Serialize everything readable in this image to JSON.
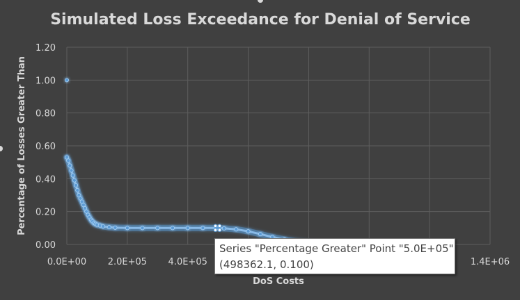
{
  "chart_data": {
    "type": "scatter",
    "title": "Simulated Loss Exceedance for Denial of Service",
    "xlabel": "DoS Costs",
    "ylabel": "Percentage of Losses Greater Than",
    "xlim": [
      0,
      1400000
    ],
    "ylim": [
      0,
      1.2
    ],
    "x_ticks": [
      0,
      200000,
      400000,
      600000,
      800000,
      1000000,
      1200000,
      1400000
    ],
    "x_tick_labels": [
      "0.0E+00",
      "2.0E+05",
      "4.0E+05",
      "6.0E+05",
      "8.0E+05",
      "1.0E+06",
      "1.2E+06",
      "1.4E+06"
    ],
    "y_ticks": [
      0,
      0.2,
      0.4,
      0.6,
      0.8,
      1.0,
      1.2
    ],
    "y_tick_labels": [
      "0.00",
      "0.20",
      "0.40",
      "0.60",
      "0.80",
      "1.00",
      "1.20"
    ],
    "grid": true,
    "series": [
      {
        "name": "Percentage Greater",
        "color": "#5b9bd5",
        "points": [
          [
            0,
            1.0
          ],
          [
            0,
            0.53
          ],
          [
            5000,
            0.51
          ],
          [
            10000,
            0.48
          ],
          [
            15000,
            0.45
          ],
          [
            20000,
            0.42
          ],
          [
            25000,
            0.39
          ],
          [
            30000,
            0.36
          ],
          [
            35000,
            0.33
          ],
          [
            40000,
            0.3
          ],
          [
            45000,
            0.28
          ],
          [
            50000,
            0.26
          ],
          [
            55000,
            0.24
          ],
          [
            60000,
            0.22
          ],
          [
            65000,
            0.2
          ],
          [
            70000,
            0.18
          ],
          [
            75000,
            0.165
          ],
          [
            80000,
            0.15
          ],
          [
            85000,
            0.14
          ],
          [
            90000,
            0.13
          ],
          [
            95000,
            0.125
          ],
          [
            100000,
            0.12
          ],
          [
            110000,
            0.115
          ],
          [
            120000,
            0.11
          ],
          [
            140000,
            0.105
          ],
          [
            160000,
            0.102
          ],
          [
            200000,
            0.1
          ],
          [
            250000,
            0.1
          ],
          [
            300000,
            0.1
          ],
          [
            350000,
            0.1
          ],
          [
            400000,
            0.1
          ],
          [
            450000,
            0.1
          ],
          [
            498362.1,
            0.1
          ],
          [
            520000,
            0.098
          ],
          [
            560000,
            0.092
          ],
          [
            600000,
            0.08
          ],
          [
            640000,
            0.063
          ],
          [
            680000,
            0.045
          ],
          [
            720000,
            0.03
          ],
          [
            760000,
            0.018
          ],
          [
            790000,
            0.01
          ],
          [
            810000,
            0.005
          ],
          [
            830000,
            0.002
          ],
          [
            850000,
            0.0
          ]
        ],
        "highlighted_point": [
          498362.1,
          0.1
        ]
      }
    ]
  },
  "tooltip": {
    "line1": "Series \"Percentage Greater\" Point \"5.0E+05\"",
    "line2": "(498362.1, 0.100)"
  }
}
